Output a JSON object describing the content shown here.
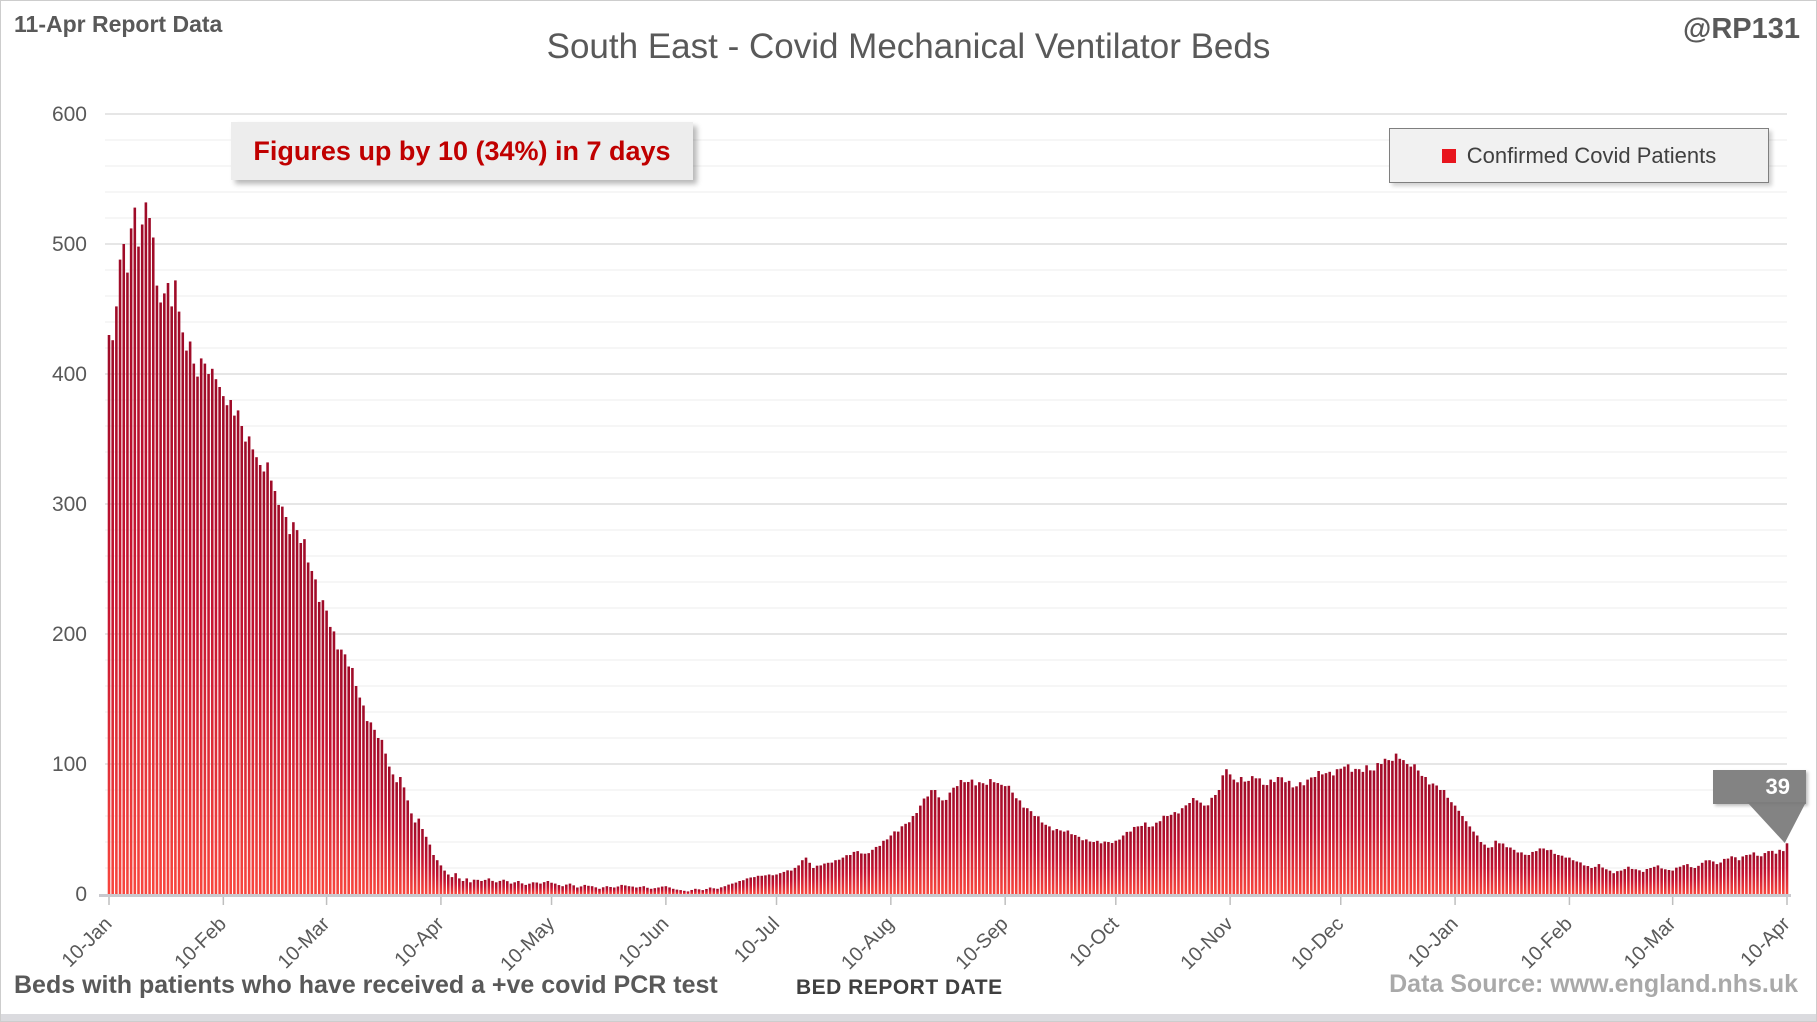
{
  "header": {
    "report_label": "11-Apr Report Data",
    "title": "South East - Covid Mechanical Ventilator Beds",
    "handle": "@RP131"
  },
  "annotation": {
    "text": "Figures up by 10 (34%) in 7 days"
  },
  "legend": {
    "label": "Confirmed Covid Patients",
    "marker_color": "#e8151d"
  },
  "data_label": {
    "value": "39"
  },
  "footer": {
    "note": "Beds with patients who have received a +ve covid PCR test",
    "axis_title": "BED REPORT DATE",
    "source": "Data Source: www.england.nhs.uk"
  },
  "colors": {
    "text_gray": "#595959",
    "gridline_major": "#dedede",
    "gridline_minor": "#f3f3f3",
    "axis_line": "#c9c9ce",
    "tick": "#bfbfbf",
    "annotation_red": "#c00000",
    "callout_gray": "#7c7c7c"
  },
  "chart_data": {
    "type": "bar",
    "title": "South East - Covid Mechanical Ventilator Beds",
    "xlabel": "BED REPORT DATE",
    "ylabel": "",
    "series_name": "Confirmed Covid Patients",
    "ylim": [
      0,
      600
    ],
    "y_ticks": [
      0,
      100,
      200,
      300,
      400,
      500,
      600
    ],
    "minor_grid_step": 20,
    "grid": true,
    "legend_position": "top-right",
    "x_tick_labels": [
      "10-Jan",
      "10-Feb",
      "10-Mar",
      "10-Apr",
      "10-May",
      "10-Jun",
      "10-Jul",
      "10-Aug",
      "10-Sep",
      "10-Oct",
      "10-Nov",
      "10-Dec",
      "10-Jan",
      "10-Feb",
      "10-Mar",
      "10-Apr"
    ],
    "x_tick_day_offsets": [
      0,
      31,
      59,
      90,
      120,
      151,
      181,
      212,
      243,
      273,
      304,
      334,
      365,
      396,
      424,
      455
    ],
    "total_days": 456,
    "bar_gradient": [
      "#9e0b28",
      "#c41230",
      "#f8463e"
    ],
    "jitter": 0.04,
    "last_value": 39,
    "sampling_note": "Daily bars; values estimated from pixels. Anchors are [day_offset_from_10-Jan, value]; intermediate days linearly interpolated.",
    "anchors": [
      [
        0,
        430
      ],
      [
        1,
        426
      ],
      [
        2,
        452
      ],
      [
        3,
        488
      ],
      [
        4,
        500
      ],
      [
        5,
        478
      ],
      [
        6,
        512
      ],
      [
        7,
        528
      ],
      [
        8,
        498
      ],
      [
        9,
        515
      ],
      [
        10,
        532
      ],
      [
        11,
        520
      ],
      [
        12,
        505
      ],
      [
        13,
        468
      ],
      [
        14,
        455
      ],
      [
        15,
        462
      ],
      [
        16,
        470
      ],
      [
        17,
        452
      ],
      [
        18,
        472
      ],
      [
        19,
        448
      ],
      [
        20,
        432
      ],
      [
        21,
        418
      ],
      [
        22,
        425
      ],
      [
        23,
        408
      ],
      [
        24,
        398
      ],
      [
        25,
        412
      ],
      [
        26,
        408
      ],
      [
        27,
        400
      ],
      [
        28,
        404
      ],
      [
        29,
        396
      ],
      [
        30,
        390
      ],
      [
        31,
        383
      ],
      [
        32,
        376
      ],
      [
        33,
        380
      ],
      [
        34,
        368
      ],
      [
        35,
        372
      ],
      [
        36,
        360
      ],
      [
        37,
        348
      ],
      [
        38,
        352
      ],
      [
        39,
        342
      ],
      [
        40,
        336
      ],
      [
        41,
        330
      ],
      [
        42,
        325
      ],
      [
        43,
        332
      ],
      [
        44,
        318
      ],
      [
        45,
        310
      ],
      [
        47,
        298
      ],
      [
        48,
        290
      ],
      [
        50,
        286
      ],
      [
        52,
        270
      ],
      [
        54,
        255
      ],
      [
        56,
        242
      ],
      [
        58,
        226
      ],
      [
        59,
        218
      ],
      [
        61,
        202
      ],
      [
        63,
        188
      ],
      [
        65,
        175
      ],
      [
        67,
        160
      ],
      [
        69,
        145
      ],
      [
        71,
        132
      ],
      [
        73,
        120
      ],
      [
        75,
        108
      ],
      [
        76,
        98
      ],
      [
        77,
        92
      ],
      [
        78,
        86
      ],
      [
        79,
        90
      ],
      [
        80,
        82
      ],
      [
        81,
        72
      ],
      [
        82,
        62
      ],
      [
        83,
        55
      ],
      [
        84,
        58
      ],
      [
        85,
        50
      ],
      [
        86,
        44
      ],
      [
        87,
        38
      ],
      [
        88,
        30
      ],
      [
        89,
        26
      ],
      [
        90,
        22
      ],
      [
        91,
        18
      ],
      [
        92,
        15
      ],
      [
        93,
        13
      ],
      [
        94,
        16
      ],
      [
        95,
        12
      ],
      [
        96,
        10
      ],
      [
        97,
        12
      ],
      [
        98,
        9
      ],
      [
        99,
        11
      ],
      [
        101,
        10
      ],
      [
        103,
        12
      ],
      [
        105,
        9
      ],
      [
        107,
        11
      ],
      [
        109,
        8
      ],
      [
        111,
        10
      ],
      [
        113,
        7
      ],
      [
        115,
        9
      ],
      [
        117,
        8
      ],
      [
        119,
        10
      ],
      [
        121,
        8
      ],
      [
        123,
        6
      ],
      [
        125,
        8
      ],
      [
        127,
        5
      ],
      [
        129,
        7
      ],
      [
        131,
        6
      ],
      [
        133,
        4
      ],
      [
        135,
        6
      ],
      [
        137,
        5
      ],
      [
        139,
        7
      ],
      [
        141,
        6
      ],
      [
        143,
        5
      ],
      [
        145,
        6
      ],
      [
        147,
        4
      ],
      [
        149,
        5
      ],
      [
        151,
        6
      ],
      [
        153,
        4
      ],
      [
        155,
        3
      ],
      [
        157,
        2
      ],
      [
        159,
        4
      ],
      [
        161,
        3
      ],
      [
        163,
        5
      ],
      [
        165,
        4
      ],
      [
        167,
        6
      ],
      [
        169,
        8
      ],
      [
        171,
        10
      ],
      [
        173,
        12
      ],
      [
        175,
        13
      ],
      [
        177,
        14
      ],
      [
        179,
        15
      ],
      [
        181,
        15
      ],
      [
        183,
        17
      ],
      [
        185,
        18
      ],
      [
        187,
        22
      ],
      [
        188,
        26
      ],
      [
        189,
        28
      ],
      [
        190,
        24
      ],
      [
        191,
        20
      ],
      [
        193,
        22
      ],
      [
        195,
        24
      ],
      [
        197,
        26
      ],
      [
        199,
        28
      ],
      [
        201,
        30
      ],
      [
        203,
        33
      ],
      [
        205,
        31
      ],
      [
        207,
        34
      ],
      [
        209,
        37
      ],
      [
        211,
        42
      ],
      [
        212,
        45
      ],
      [
        214,
        48
      ],
      [
        216,
        54
      ],
      [
        218,
        60
      ],
      [
        220,
        68
      ],
      [
        222,
        75
      ],
      [
        224,
        80
      ],
      [
        226,
        72
      ],
      [
        228,
        78
      ],
      [
        230,
        83
      ],
      [
        232,
        86
      ],
      [
        234,
        88
      ],
      [
        236,
        86
      ],
      [
        238,
        84
      ],
      [
        240,
        86
      ],
      [
        242,
        84
      ],
      [
        243,
        83
      ],
      [
        245,
        78
      ],
      [
        247,
        72
      ],
      [
        249,
        66
      ],
      [
        251,
        60
      ],
      [
        253,
        55
      ],
      [
        255,
        52
      ],
      [
        257,
        50
      ],
      [
        259,
        48
      ],
      [
        261,
        46
      ],
      [
        263,
        44
      ],
      [
        265,
        42
      ],
      [
        267,
        40
      ],
      [
        269,
        39
      ],
      [
        271,
        40
      ],
      [
        273,
        41
      ],
      [
        275,
        45
      ],
      [
        277,
        48
      ],
      [
        279,
        52
      ],
      [
        281,
        55
      ],
      [
        283,
        52
      ],
      [
        285,
        56
      ],
      [
        287,
        60
      ],
      [
        289,
        63
      ],
      [
        291,
        66
      ],
      [
        293,
        70
      ],
      [
        295,
        72
      ],
      [
        297,
        68
      ],
      [
        299,
        74
      ],
      [
        301,
        80
      ],
      [
        303,
        96
      ],
      [
        304,
        92
      ],
      [
        305,
        88
      ],
      [
        307,
        90
      ],
      [
        309,
        87
      ],
      [
        311,
        89
      ],
      [
        313,
        84
      ],
      [
        315,
        88
      ],
      [
        317,
        90
      ],
      [
        319,
        86
      ],
      [
        321,
        82
      ],
      [
        323,
        86
      ],
      [
        325,
        88
      ],
      [
        327,
        90
      ],
      [
        329,
        92
      ],
      [
        331,
        94
      ],
      [
        333,
        96
      ],
      [
        335,
        98
      ],
      [
        337,
        94
      ],
      [
        339,
        96
      ],
      [
        341,
        99
      ],
      [
        343,
        95
      ],
      [
        345,
        100
      ],
      [
        347,
        103
      ],
      [
        349,
        108
      ],
      [
        350,
        104
      ],
      [
        351,
        103
      ],
      [
        352,
        100
      ],
      [
        353,
        98
      ],
      [
        355,
        95
      ],
      [
        357,
        90
      ],
      [
        359,
        85
      ],
      [
        361,
        80
      ],
      [
        363,
        74
      ],
      [
        365,
        68
      ],
      [
        366,
        64
      ],
      [
        367,
        60
      ],
      [
        368,
        56
      ],
      [
        369,
        52
      ],
      [
        370,
        48
      ],
      [
        371,
        45
      ],
      [
        372,
        40
      ],
      [
        373,
        38
      ],
      [
        375,
        36
      ],
      [
        376,
        41
      ],
      [
        377,
        39
      ],
      [
        379,
        36
      ],
      [
        381,
        34
      ],
      [
        383,
        32
      ],
      [
        385,
        30
      ],
      [
        387,
        33
      ],
      [
        389,
        35
      ],
      [
        391,
        34
      ],
      [
        393,
        30
      ],
      [
        395,
        28
      ],
      [
        396,
        28
      ],
      [
        398,
        25
      ],
      [
        400,
        22
      ],
      [
        402,
        20
      ],
      [
        404,
        23
      ],
      [
        406,
        19
      ],
      [
        408,
        16
      ],
      [
        410,
        18
      ],
      [
        412,
        21
      ],
      [
        414,
        19
      ],
      [
        416,
        17
      ],
      [
        418,
        20
      ],
      [
        420,
        22
      ],
      [
        422,
        19
      ],
      [
        424,
        18
      ],
      [
        426,
        21
      ],
      [
        428,
        23
      ],
      [
        430,
        20
      ],
      [
        432,
        24
      ],
      [
        434,
        26
      ],
      [
        436,
        23
      ],
      [
        438,
        27
      ],
      [
        440,
        29
      ],
      [
        442,
        26
      ],
      [
        444,
        30
      ],
      [
        446,
        32
      ],
      [
        448,
        29
      ],
      [
        450,
        33
      ],
      [
        452,
        31
      ],
      [
        453,
        34
      ],
      [
        454,
        33
      ],
      [
        455,
        39
      ]
    ]
  }
}
